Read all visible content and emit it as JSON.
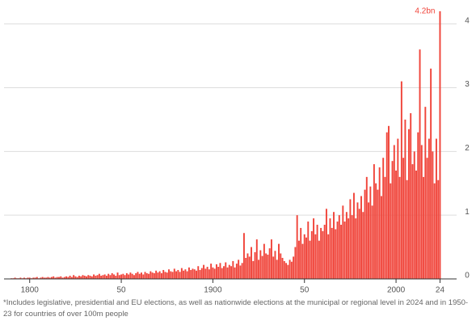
{
  "chart_data": {
    "type": "bar",
    "x": [
      1790,
      1791,
      1792,
      1793,
      1794,
      1795,
      1796,
      1797,
      1798,
      1799,
      1800,
      1801,
      1802,
      1803,
      1804,
      1805,
      1806,
      1807,
      1808,
      1809,
      1810,
      1811,
      1812,
      1813,
      1814,
      1815,
      1816,
      1817,
      1818,
      1819,
      1820,
      1821,
      1822,
      1823,
      1824,
      1825,
      1826,
      1827,
      1828,
      1829,
      1830,
      1831,
      1832,
      1833,
      1834,
      1835,
      1836,
      1837,
      1838,
      1839,
      1840,
      1841,
      1842,
      1843,
      1844,
      1845,
      1846,
      1847,
      1848,
      1849,
      1850,
      1851,
      1852,
      1853,
      1854,
      1855,
      1856,
      1857,
      1858,
      1859,
      1860,
      1861,
      1862,
      1863,
      1864,
      1865,
      1866,
      1867,
      1868,
      1869,
      1870,
      1871,
      1872,
      1873,
      1874,
      1875,
      1876,
      1877,
      1878,
      1879,
      1880,
      1881,
      1882,
      1883,
      1884,
      1885,
      1886,
      1887,
      1888,
      1889,
      1890,
      1891,
      1892,
      1893,
      1894,
      1895,
      1896,
      1897,
      1898,
      1899,
      1900,
      1901,
      1902,
      1903,
      1904,
      1905,
      1906,
      1907,
      1908,
      1909,
      1910,
      1911,
      1912,
      1913,
      1914,
      1915,
      1916,
      1917,
      1918,
      1919,
      1920,
      1921,
      1922,
      1923,
      1924,
      1925,
      1926,
      1927,
      1928,
      1929,
      1930,
      1931,
      1932,
      1933,
      1934,
      1935,
      1936,
      1937,
      1938,
      1939,
      1940,
      1941,
      1942,
      1943,
      1944,
      1945,
      1946,
      1947,
      1948,
      1949,
      1950,
      1951,
      1952,
      1953,
      1954,
      1955,
      1956,
      1957,
      1958,
      1959,
      1960,
      1961,
      1962,
      1963,
      1964,
      1965,
      1966,
      1967,
      1968,
      1969,
      1970,
      1971,
      1972,
      1973,
      1974,
      1975,
      1976,
      1977,
      1978,
      1979,
      1980,
      1981,
      1982,
      1983,
      1984,
      1985,
      1986,
      1987,
      1988,
      1989,
      1990,
      1991,
      1992,
      1993,
      1994,
      1995,
      1996,
      1997,
      1998,
      1999,
      2000,
      2001,
      2002,
      2003,
      2004,
      2005,
      2006,
      2007,
      2008,
      2009,
      2010,
      2011,
      2012,
      2013,
      2014,
      2015,
      2016,
      2017,
      2018,
      2019,
      2020,
      2021,
      2022,
      2023,
      2024
    ],
    "values": [
      0.01,
      0.01,
      0.02,
      0.01,
      0.01,
      0.02,
      0.01,
      0.02,
      0.01,
      0.02,
      0.02,
      0.01,
      0.02,
      0.02,
      0.03,
      0.01,
      0.02,
      0.03,
      0.02,
      0.02,
      0.03,
      0.02,
      0.03,
      0.04,
      0.02,
      0.03,
      0.03,
      0.04,
      0.02,
      0.03,
      0.04,
      0.03,
      0.05,
      0.03,
      0.06,
      0.04,
      0.03,
      0.05,
      0.04,
      0.06,
      0.05,
      0.04,
      0.06,
      0.05,
      0.04,
      0.07,
      0.05,
      0.06,
      0.08,
      0.05,
      0.06,
      0.07,
      0.05,
      0.08,
      0.06,
      0.09,
      0.07,
      0.05,
      0.1,
      0.06,
      0.07,
      0.08,
      0.06,
      0.09,
      0.07,
      0.1,
      0.08,
      0.06,
      0.09,
      0.11,
      0.08,
      0.1,
      0.07,
      0.11,
      0.09,
      0.08,
      0.12,
      0.1,
      0.09,
      0.13,
      0.1,
      0.12,
      0.09,
      0.14,
      0.11,
      0.1,
      0.15,
      0.12,
      0.11,
      0.16,
      0.12,
      0.14,
      0.11,
      0.17,
      0.13,
      0.15,
      0.12,
      0.18,
      0.14,
      0.16,
      0.15,
      0.13,
      0.2,
      0.14,
      0.17,
      0.22,
      0.16,
      0.19,
      0.15,
      0.24,
      0.18,
      0.16,
      0.23,
      0.19,
      0.25,
      0.17,
      0.2,
      0.26,
      0.18,
      0.22,
      0.2,
      0.28,
      0.18,
      0.24,
      0.3,
      0.21,
      0.25,
      0.72,
      0.33,
      0.4,
      0.35,
      0.5,
      0.28,
      0.42,
      0.62,
      0.3,
      0.45,
      0.36,
      0.55,
      0.4,
      0.38,
      0.48,
      0.62,
      0.35,
      0.44,
      0.3,
      0.55,
      0.4,
      0.33,
      0.28,
      0.25,
      0.22,
      0.3,
      0.27,
      0.35,
      0.5,
      1.0,
      0.6,
      0.8,
      0.55,
      0.7,
      0.65,
      0.9,
      0.6,
      0.75,
      0.95,
      0.7,
      0.85,
      0.6,
      0.8,
      0.75,
      0.85,
      1.1,
      0.7,
      0.95,
      0.8,
      1.05,
      0.78,
      0.9,
      1.0,
      0.85,
      1.15,
      0.9,
      1.05,
      0.95,
      1.25,
      1.0,
      1.35,
      0.95,
      1.2,
      1.1,
      1.3,
      1.05,
      1.4,
      1.6,
      1.2,
      1.45,
      1.15,
      1.8,
      1.5,
      1.4,
      1.75,
      1.3,
      1.9,
      1.6,
      2.3,
      2.4,
      1.5,
      1.85,
      2.1,
      1.7,
      2.2,
      1.6,
      3.1,
      1.9,
      2.5,
      1.55,
      2.35,
      2.6,
      1.8,
      2.0,
      1.7,
      2.3,
      3.6,
      2.1,
      1.6,
      2.7,
      1.9,
      2.2,
      3.3,
      2.0,
      1.5,
      2.2,
      1.55,
      4.2
    ],
    "color": "#f0443a",
    "xlim": [
      1786,
      2026
    ],
    "xticks": [
      1800,
      {
        "value": 1850,
        "label": "50"
      },
      1900,
      {
        "value": 1950,
        "label": "50"
      },
      2000,
      {
        "value": 2024,
        "label": "24"
      }
    ],
    "ylim": [
      0,
      4.3
    ],
    "yticks": [
      0,
      1,
      2,
      3,
      4
    ],
    "grid": true,
    "annotations": [
      {
        "text": "4.2bn",
        "x": 2024,
        "y": 4.2
      }
    ],
    "footnote": "*Includes legislative, presidential and EU elections, as well as nationwide elections at the municipal or regional level in 2024 and in 1950-23 for countries of over 100m people"
  }
}
